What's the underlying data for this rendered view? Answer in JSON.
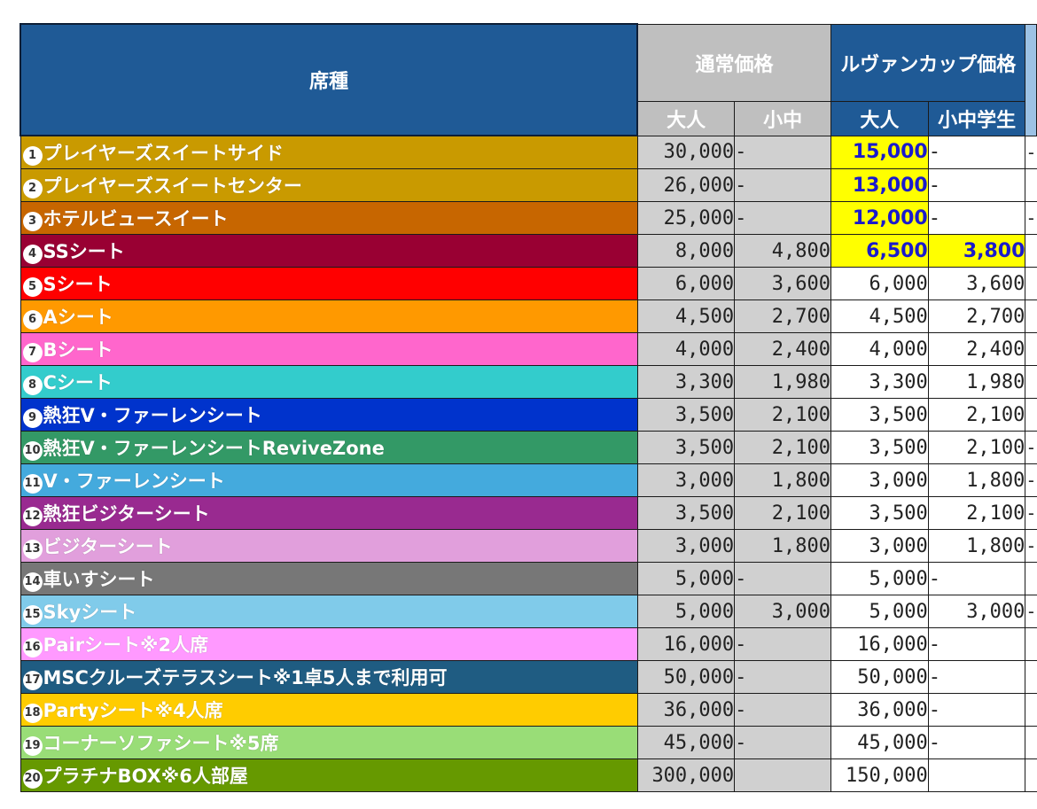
{
  "header": {
    "seat_label": "席種",
    "normal_label": "通常価格",
    "cup_label": "ルヴァンカップ価格",
    "normal_adult": "大人",
    "normal_child": "小中",
    "cup_adult": "大人",
    "cup_child": "小中学生"
  },
  "colors": {
    "header_blue": "#1f5a96",
    "header_gray": "#bfbfbf",
    "highlight_yellow": "#ffff00",
    "highlight_text": "#1a1acc"
  },
  "rows": [
    {
      "num": "1",
      "name": "プレイヤーズスイートサイド",
      "color": "#c99a00",
      "n_adult": "30,000",
      "n_child": "-",
      "c_adult": "15,000",
      "c_child": "-",
      "extra": "-",
      "highlight_adult": true,
      "highlight_child": false
    },
    {
      "num": "2",
      "name": "プレイヤーズスイートセンター",
      "color": "#c99a00",
      "n_adult": "26,000",
      "n_child": "-",
      "c_adult": "13,000",
      "c_child": "-",
      "extra": "",
      "highlight_adult": true,
      "highlight_child": false
    },
    {
      "num": "3",
      "name": "ホテルビュースイート",
      "color": "#c76600",
      "n_adult": "25,000",
      "n_child": "-",
      "c_adult": "12,000",
      "c_child": "-",
      "extra": "-",
      "highlight_adult": true,
      "highlight_child": false
    },
    {
      "num": "4",
      "name": "SSシート",
      "color": "#990033",
      "n_adult": "8,000",
      "n_child": "4,800",
      "c_adult": "6,500",
      "c_child": "3,800",
      "extra": "",
      "highlight_adult": true,
      "highlight_child": true
    },
    {
      "num": "5",
      "name": "Sシート",
      "color": "#ff0000",
      "n_adult": "6,000",
      "n_child": "3,600",
      "c_adult": "6,000",
      "c_child": "3,600",
      "extra": "",
      "highlight_adult": false,
      "highlight_child": false
    },
    {
      "num": "6",
      "name": "Aシート",
      "color": "#ff9900",
      "n_adult": "4,500",
      "n_child": "2,700",
      "c_adult": "4,500",
      "c_child": "2,700",
      "extra": "",
      "highlight_adult": false,
      "highlight_child": false
    },
    {
      "num": "7",
      "name": "Bシート",
      "color": "#ff66cc",
      "n_adult": "4,000",
      "n_child": "2,400",
      "c_adult": "4,000",
      "c_child": "2,400",
      "extra": "",
      "highlight_adult": false,
      "highlight_child": false
    },
    {
      "num": "8",
      "name": "Cシート",
      "color": "#33cccc",
      "n_adult": "3,300",
      "n_child": "1,980",
      "c_adult": "3,300",
      "c_child": "1,980",
      "extra": "",
      "highlight_adult": false,
      "highlight_child": false
    },
    {
      "num": "9",
      "name": "熱狂V・ファーレンシート",
      "color": "#0033cc",
      "n_adult": "3,500",
      "n_child": "2,100",
      "c_adult": "3,500",
      "c_child": "2,100",
      "extra": "",
      "highlight_adult": false,
      "highlight_child": false
    },
    {
      "num": "10",
      "name": "熱狂V・ファーレンシートReviveZone",
      "color": "#339966",
      "n_adult": "3,500",
      "n_child": "2,100",
      "c_adult": "3,500",
      "c_child": "2,100",
      "extra": "-",
      "highlight_adult": false,
      "highlight_child": false
    },
    {
      "num": "11",
      "name": "V・ファーレンシート",
      "color": "#44aadd",
      "n_adult": "3,000",
      "n_child": "1,800",
      "c_adult": "3,000",
      "c_child": "1,800",
      "extra": "-",
      "highlight_adult": false,
      "highlight_child": false
    },
    {
      "num": "12",
      "name": "熱狂ビジターシート",
      "color": "#992a90",
      "n_adult": "3,500",
      "n_child": "2,100",
      "c_adult": "3,500",
      "c_child": "2,100",
      "extra": "-",
      "highlight_adult": false,
      "highlight_child": false
    },
    {
      "num": "13",
      "name": "ビジターシート",
      "color": "#e19fdc",
      "n_adult": "3,000",
      "n_child": "1,800",
      "c_adult": "3,000",
      "c_child": "1,800",
      "extra": "-",
      "highlight_adult": false,
      "highlight_child": false
    },
    {
      "num": "14",
      "name": "車いすシート",
      "color": "#777777",
      "n_adult": "5,000",
      "n_child": "-",
      "c_adult": "5,000",
      "c_child": "-",
      "extra": "",
      "highlight_adult": false,
      "highlight_child": false
    },
    {
      "num": "15",
      "name": "Skyシート",
      "color": "#80cbea",
      "n_adult": "5,000",
      "n_child": "3,000",
      "c_adult": "5,000",
      "c_child": "3,000",
      "extra": "-",
      "highlight_adult": false,
      "highlight_child": false
    },
    {
      "num": "16",
      "name": "Pairシート※2人席",
      "color": "#ff99ff",
      "n_adult": "16,000",
      "n_child": "-",
      "c_adult": "16,000",
      "c_child": "-",
      "extra": "",
      "highlight_adult": false,
      "highlight_child": false
    },
    {
      "num": "17",
      "name": "MSCクルーズテラスシート※1卓5人まで利用可",
      "color": "#1f5c82",
      "n_adult": "50,000",
      "n_child": "-",
      "c_adult": "50,000",
      "c_child": "-",
      "extra": "",
      "highlight_adult": false,
      "highlight_child": false
    },
    {
      "num": "18",
      "name": "Partyシート※4人席",
      "color": "#ffcc00",
      "n_adult": "36,000",
      "n_child": "-",
      "c_adult": "36,000",
      "c_child": "-",
      "extra": "",
      "highlight_adult": false,
      "highlight_child": false
    },
    {
      "num": "19",
      "name": "コーナーソファシート※5席",
      "color": "#99dd77",
      "n_adult": "45,000",
      "n_child": "-",
      "c_adult": "45,000",
      "c_child": "-",
      "extra": "",
      "highlight_adult": false,
      "highlight_child": false
    },
    {
      "num": "20",
      "name": "プラチナBOX※6人部屋",
      "color": "#669900",
      "n_adult": "300,000",
      "n_child": "",
      "c_adult": "150,000",
      "c_child": "",
      "extra": "",
      "highlight_adult": false,
      "highlight_child": false
    }
  ]
}
